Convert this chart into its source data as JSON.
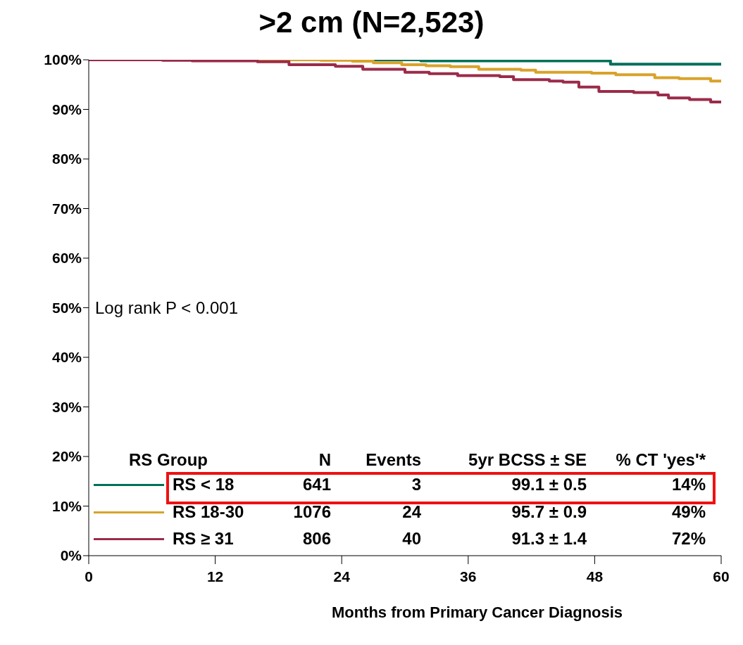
{
  "chart_data": {
    "type": "step",
    "title": ">2 cm (N=2,523)",
    "xlabel": "Months from Primary Cancer Diagnosis",
    "legend_title": "RS Group",
    "legend": "bottom left",
    "xlim": [
      0,
      60
    ],
    "xticks": [
      0,
      12,
      24,
      36,
      48,
      60
    ],
    "ylim": [
      0,
      100
    ],
    "yticks": [
      {
        "value": 0,
        "label": "0%"
      },
      {
        "value": 10,
        "label": "10%"
      },
      {
        "value": 20,
        "label": "20%"
      },
      {
        "value": 30,
        "label": "30%"
      },
      {
        "value": 40,
        "label": "40%"
      },
      {
        "value": 50,
        "label": "50%"
      },
      {
        "value": 60,
        "label": "60%"
      },
      {
        "value": 70,
        "label": "70%"
      },
      {
        "value": 80,
        "label": "80%"
      },
      {
        "value": 90,
        "label": "90%"
      },
      {
        "value": 100,
        "label": "100%"
      }
    ],
    "marker": "none",
    "line_style": "solid",
    "series": [
      {
        "name": "RS < 18",
        "color": "#00705a",
        "x": [
          0,
          31.5,
          49.5,
          60
        ],
        "values": [
          100,
          99.8,
          99.1,
          99.1
        ]
      },
      {
        "name": "RS 18-30",
        "color": "#d9a22a",
        "x": [
          0,
          22,
          25,
          27,
          29.7,
          32,
          34.3,
          37,
          41,
          42.4,
          47.7,
          50,
          53.7,
          56,
          59,
          60
        ],
        "values": [
          100,
          99.9,
          99.7,
          99.4,
          99.0,
          98.8,
          98.6,
          98.1,
          97.9,
          97.5,
          97.3,
          97.0,
          96.4,
          96.2,
          95.7,
          95.7
        ]
      },
      {
        "name": "RS ≥ 31",
        "color": "#9b2b4a",
        "x": [
          0,
          7,
          9.8,
          16,
          19,
          23.4,
          26,
          30,
          32.3,
          35,
          39,
          40.3,
          43.7,
          45,
          46.5,
          48.4,
          51.7,
          54,
          55,
          57,
          59,
          60
        ],
        "values": [
          100,
          99.9,
          99.8,
          99.6,
          99.0,
          98.7,
          98.1,
          97.5,
          97.2,
          96.8,
          96.6,
          96.0,
          95.7,
          95.5,
          94.5,
          93.6,
          93.4,
          92.9,
          92.3,
          92.0,
          91.5,
          91.3
        ]
      }
    ],
    "annotations": [
      "Log rank P < 0.001",
      "N",
      "Events",
      "5yr BCSS ± SE",
      "% CT 'yes'*",
      "641",
      "3",
      "99.1 ± 0.5",
      "14%",
      "1076",
      "24",
      "95.7 ± 0.9",
      "49%",
      "806",
      "40",
      "91.3 ± 1.4",
      "72%"
    ]
  }
}
